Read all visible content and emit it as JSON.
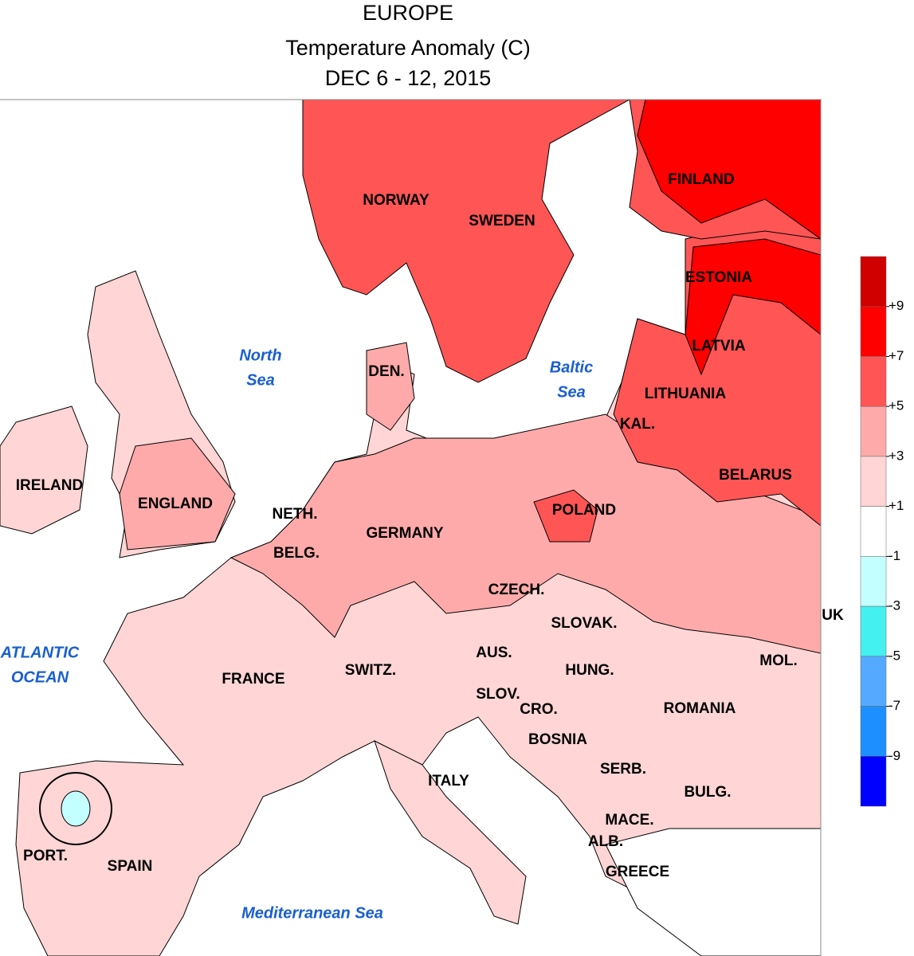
{
  "header": {
    "title": [
      "EUROPE",
      "Temperature Anomaly (C)",
      "DEC 6 - 12, 2015"
    ]
  },
  "map": {
    "countries": [
      "NORWAY",
      "SWEDEN",
      "FINLAND",
      "ESTONIA",
      "LATVIA",
      "LITHUANIA",
      "KAL.",
      "BELARUS",
      "DEN.",
      "IRELAND",
      "ENGLAND",
      "NETH.",
      "BELG.",
      "GERMANY",
      "POLAND",
      "CZECH.",
      "SLOVAK.",
      "UK",
      "AUS.",
      "HUNG.",
      "MOL.",
      "SWITZ.",
      "FRANCE",
      "SLOV.",
      "CRO.",
      "ROMANIA",
      "BOSNIA",
      "SERB.",
      "ITALY",
      "BULG.",
      "MACE.",
      "ALB.",
      "GREECE",
      "PORT.",
      "SPAIN"
    ],
    "seas": [
      [
        "North",
        "Sea"
      ],
      [
        "Baltic",
        "Sea"
      ],
      [
        "ATLANTIC",
        "OCEAN"
      ],
      [
        "Mediterranean Sea"
      ]
    ]
  },
  "colorbar": {
    "lim": [
      -11,
      11
    ],
    "colors": [
      "#d00000",
      "#ff0000",
      "#ff5555",
      "#ffaaaa",
      "#ffd5d5",
      "#ffffff",
      "#c4ffff",
      "#44f0f0",
      "#55aaff",
      "#1e8fff",
      "#0000ff"
    ],
    "ticks": [
      {
        "value": 9,
        "label": "+9"
      },
      {
        "value": 7,
        "label": "+7"
      },
      {
        "value": 5,
        "label": "+5"
      },
      {
        "value": 3,
        "label": "+3"
      },
      {
        "value": 1,
        "label": "+1"
      },
      -1,
      -3,
      -5,
      -7,
      -9
    ]
  }
}
